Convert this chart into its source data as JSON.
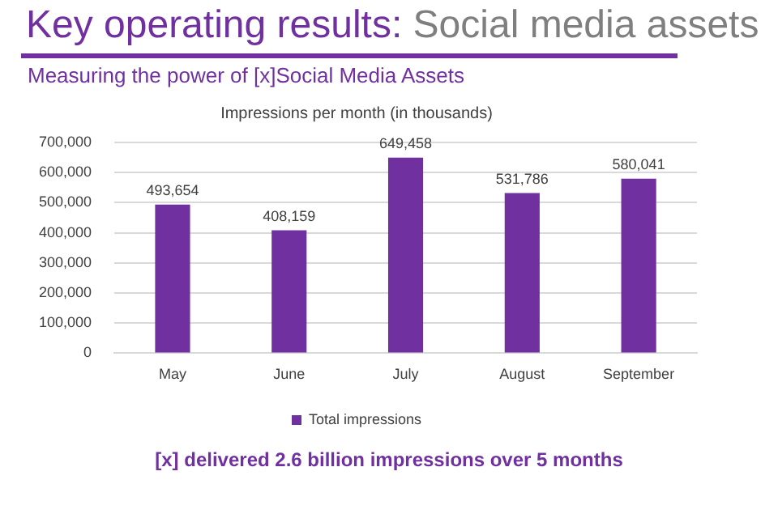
{
  "chart_data": {
    "type": "bar",
    "title": "Key operating results: Social media assets",
    "subtitle": "Measuring the power of [x]Social Media Assets",
    "annotations": [
      "Impressions per month (in thousands)",
      "[x] delivered 2.6 billion impressions over 5 months"
    ],
    "categories": [
      "May",
      "June",
      "July",
      "August",
      "September"
    ],
    "series": [
      {
        "name": "Total impressions",
        "color": "#7030a0",
        "values": [
          493654,
          408159,
          649458,
          531786,
          580041
        ],
        "value_labels": [
          "493,654",
          "408,159",
          "649,458",
          "531,786",
          "580,041"
        ]
      }
    ],
    "ylim": [
      0,
      700000
    ],
    "yticks": [
      0,
      {
        "value": 100000,
        "label": "100,000"
      },
      {
        "value": 200000,
        "label": "200,000"
      },
      {
        "value": 300000,
        "label": "300,000"
      },
      {
        "value": 400000,
        "label": "400,000"
      },
      {
        "value": 500000,
        "label": "500,000"
      },
      {
        "value": 600000,
        "label": "600,000"
      },
      {
        "value": 700000,
        "label": "700,000"
      }
    ],
    "grid": "y",
    "legend": "bottom"
  }
}
